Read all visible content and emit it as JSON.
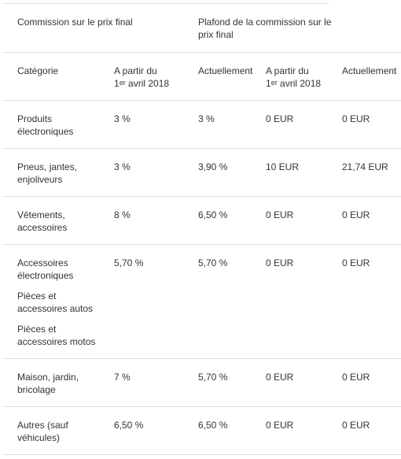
{
  "header": {
    "group1": "Commission sur le prix final",
    "group2": "Plafond de la commission sur le prix final",
    "cols": {
      "categorie": "Catégorie",
      "from_prefix": "A partir du",
      "from_day": "1",
      "from_sup": "er",
      "from_rest": " avril 2018",
      "current": "Actuellement"
    }
  },
  "rows": [
    {
      "cat": [
        "Produits électroniques"
      ],
      "c1": "3 %",
      "c2": "3 %",
      "c3": "0 EUR",
      "c4": "0 EUR"
    },
    {
      "cat": [
        "Pneus, jantes, enjoliveurs"
      ],
      "c1": "3 %",
      "c2": "3,90 %",
      "c3": "10 EUR",
      "c4": "21,74 EUR"
    },
    {
      "cat": [
        "Vêtements, accessoires"
      ],
      "c1": "8 %",
      "c2": "6,50 %",
      "c3": "0 EUR",
      "c4": "0 EUR"
    },
    {
      "cat": [
        "Accessoires électroniques",
        "Pièces et accessoires autos",
        "Pièces et accessoires motos"
      ],
      "c1": "5,70 %",
      "c2": "5,70 %",
      "c3": "0 EUR",
      "c4": "0 EUR"
    },
    {
      "cat": [
        "Maison, jardin, bricolage"
      ],
      "c1": "7 %",
      "c2": "5,70 %",
      "c3": "0 EUR",
      "c4": "0 EUR"
    },
    {
      "cat": [
        "Autres (sauf véhicules)"
      ],
      "c1": "6,50 %",
      "c2": "6,50 %",
      "c3": "0 EUR",
      "c4": "0 EUR"
    }
  ]
}
